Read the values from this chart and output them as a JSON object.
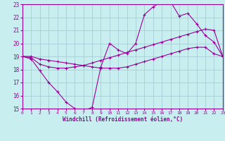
{
  "title": "Windchill (Refroidissement éolien,°C)",
  "bg_color": "#c8eef0",
  "grid_color": "#a0c8d0",
  "line_color": "#990099",
  "xlim": [
    0,
    23
  ],
  "ylim": [
    15,
    23
  ],
  "xticks": [
    0,
    1,
    2,
    3,
    4,
    5,
    6,
    7,
    8,
    9,
    10,
    11,
    12,
    13,
    14,
    15,
    16,
    17,
    18,
    19,
    20,
    21,
    22,
    23
  ],
  "yticks": [
    15,
    16,
    17,
    18,
    19,
    20,
    21,
    22,
    23
  ],
  "line1_x": [
    0,
    1,
    2,
    3,
    4,
    5,
    6,
    7,
    8,
    9,
    10,
    11,
    12,
    13,
    14,
    15,
    16,
    17,
    18,
    19,
    20,
    21,
    22,
    23
  ],
  "line1_y": [
    19.0,
    18.8,
    17.9,
    17.0,
    16.3,
    15.5,
    15.0,
    14.8,
    15.1,
    18.2,
    20.0,
    19.5,
    19.2,
    20.0,
    22.2,
    22.8,
    23.2,
    23.2,
    22.1,
    22.3,
    21.5,
    20.6,
    20.1,
    19.0
  ],
  "line2_x": [
    0,
    1,
    2,
    3,
    4,
    5,
    6,
    7,
    8,
    9,
    10,
    11,
    12,
    13,
    14,
    15,
    16,
    17,
    18,
    19,
    20,
    21,
    22,
    23
  ],
  "line2_y": [
    19.0,
    18.9,
    18.4,
    18.2,
    18.1,
    18.1,
    18.2,
    18.3,
    18.5,
    18.7,
    18.9,
    19.1,
    19.3,
    19.5,
    19.7,
    19.9,
    20.1,
    20.3,
    20.5,
    20.7,
    20.9,
    21.1,
    21.0,
    19.0
  ],
  "line3_x": [
    0,
    1,
    2,
    3,
    4,
    5,
    6,
    7,
    8,
    9,
    10,
    11,
    12,
    13,
    14,
    15,
    16,
    17,
    18,
    19,
    20,
    21,
    22,
    23
  ],
  "line3_y": [
    19.0,
    19.0,
    18.8,
    18.7,
    18.6,
    18.5,
    18.4,
    18.3,
    18.2,
    18.1,
    18.1,
    18.1,
    18.2,
    18.4,
    18.6,
    18.8,
    19.0,
    19.2,
    19.4,
    19.6,
    19.7,
    19.7,
    19.2,
    19.0
  ]
}
